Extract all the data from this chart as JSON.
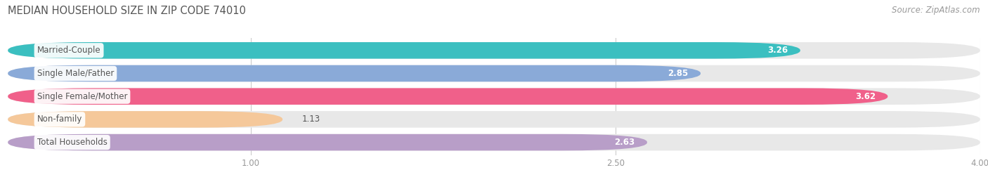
{
  "title": "MEDIAN HOUSEHOLD SIZE IN ZIP CODE 74010",
  "source": "Source: ZipAtlas.com",
  "categories": [
    "Married-Couple",
    "Single Male/Father",
    "Single Female/Mother",
    "Non-family",
    "Total Households"
  ],
  "values": [
    3.26,
    2.85,
    3.62,
    1.13,
    2.63
  ],
  "bar_colors": [
    "#3bbfc0",
    "#8aaad8",
    "#f0608a",
    "#f5c89a",
    "#b89ec8"
  ],
  "xlim_min": 0.0,
  "xlim_max": 4.0,
  "xticks": [
    1.0,
    2.5,
    4.0
  ],
  "label_color_dark": "#555555",
  "title_fontsize": 10.5,
  "source_fontsize": 8.5,
  "tick_fontsize": 8.5,
  "bar_label_fontsize": 8.5,
  "cat_label_fontsize": 8.5,
  "fig_bg_color": "#ffffff",
  "bar_bg_color": "#e8e8e8",
  "value_threshold": 2.0,
  "bar_height": 0.72,
  "bar_gap": 1.0,
  "rounding_size": 0.35
}
